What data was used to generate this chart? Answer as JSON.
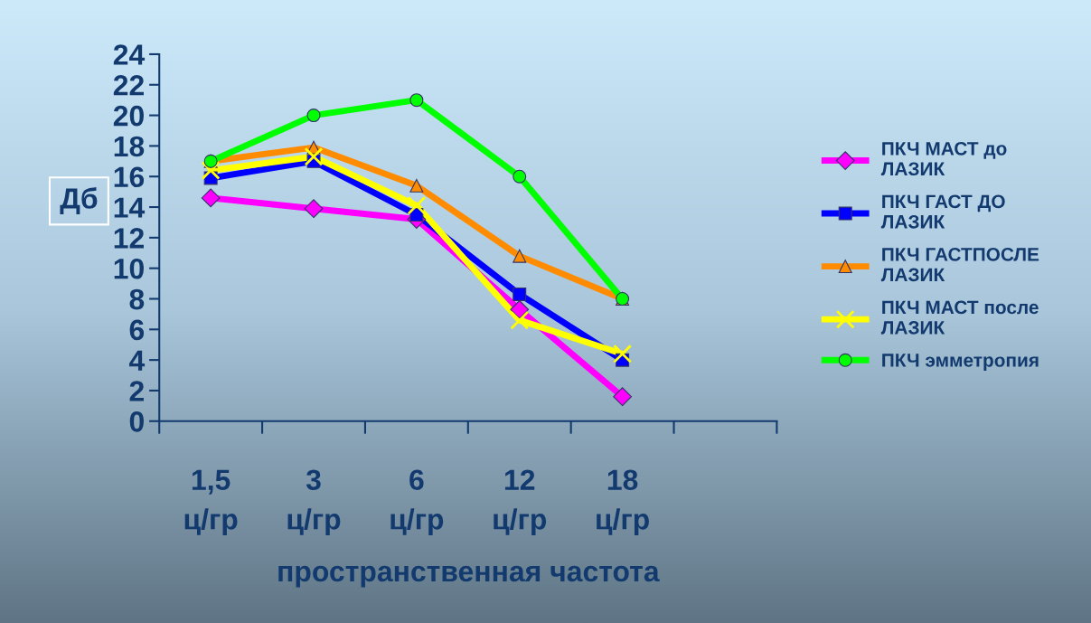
{
  "chart_data": {
    "type": "line",
    "ylabel": "Дб",
    "xlabel": "пространственная частота",
    "categories": [
      "1,5\nц/гр",
      "3\nц/гр",
      "6\nц/гр",
      "12\nц/гр",
      "18\nц/гр",
      null
    ],
    "series": [
      {
        "name": "ПКЧ МАСТ до\nЛАЗИК",
        "color": "#ff00ff",
        "marker": "diamond",
        "values": [
          14.6,
          13.9,
          13.2,
          7.3,
          1.6,
          null
        ]
      },
      {
        "name": "ПКЧ ГАСТ ДО\nЛАЗИК",
        "color": "#0000ff",
        "marker": "square",
        "values": [
          15.9,
          17.0,
          13.5,
          8.3,
          4.0,
          null
        ]
      },
      {
        "name": "ПКЧ ГАСТПОСЛЕ\nЛАЗИК",
        "color": "#ff8c00",
        "marker": "triangle",
        "values": [
          17.0,
          17.9,
          15.4,
          10.8,
          8.0,
          null
        ]
      },
      {
        "name": "ПКЧ МАСТ после\nЛАЗИК",
        "color": "#ffff00",
        "marker": "cross",
        "values": [
          16.4,
          17.3,
          14.1,
          6.6,
          4.4,
          null
        ]
      },
      {
        "name": "ПКЧ эмметропия",
        "color": "#00ff00",
        "marker": "circle",
        "values": [
          17.0,
          20.0,
          21.0,
          16.0,
          8.0,
          null
        ]
      }
    ],
    "ylim": [
      0,
      24
    ],
    "yticks": [
      0,
      2,
      4,
      6,
      8,
      10,
      12,
      14,
      16,
      18,
      20,
      22,
      24
    ],
    "grid": false,
    "legend": "right",
    "line_style": "solid"
  }
}
